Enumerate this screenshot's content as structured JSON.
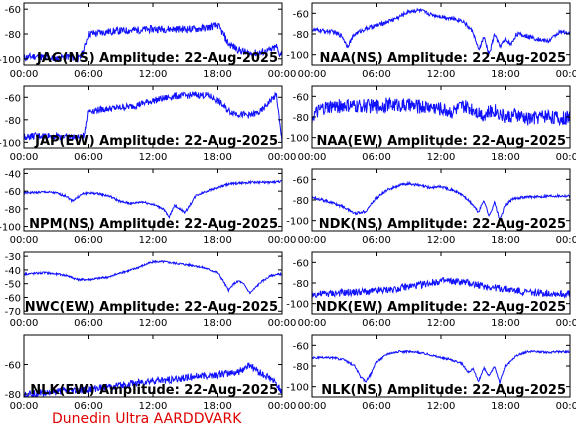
{
  "footer": "Dunedin Ultra AARDDVARK",
  "colors": {
    "trace": "#1010ff",
    "axes": "#000000",
    "footer": "#e00000",
    "background": "#ffffff"
  },
  "x_ticks": [
    "00:00",
    "06:00",
    "12:00",
    "18:00",
    "00:00"
  ],
  "chart_data": [
    {
      "type": "line",
      "title": "JAG(NS) Amplitude: 22-Aug-2025",
      "xlim": [
        0,
        24
      ],
      "ylim": [
        -105,
        -55
      ],
      "y_ticks": [
        -60,
        -80,
        -100
      ],
      "series": [
        {
          "x": [
            0,
            1,
            2,
            3,
            4,
            5.2,
            5.6,
            6,
            8,
            10,
            12,
            14,
            16,
            17,
            18,
            18.5,
            19,
            20,
            21,
            22,
            23,
            23.5,
            23.7,
            24
          ],
          "values": [
            -99,
            -98,
            -99,
            -100,
            -98,
            -100,
            -93,
            -80,
            -78,
            -77,
            -76,
            -76,
            -76,
            -75,
            -73,
            -80,
            -88,
            -93,
            -96,
            -95,
            -93,
            -90,
            -96,
            -95
          ],
          "noise": 6
        }
      ]
    },
    {
      "type": "line",
      "title": "NAA(NS) Amplitude: 22-Aug-2025",
      "xlim": [
        0,
        24
      ],
      "ylim": [
        -110,
        -50
      ],
      "y_ticks": [
        -60,
        -80,
        -100
      ],
      "series": [
        {
          "x": [
            0,
            1,
            2,
            2.8,
            3.3,
            4,
            5,
            6,
            7,
            8,
            9,
            10,
            11,
            12,
            13,
            14,
            15,
            15.5,
            16,
            16.5,
            17,
            17.5,
            18,
            18.5,
            19,
            20,
            21,
            22,
            23,
            24
          ],
          "values": [
            -76,
            -77,
            -78,
            -82,
            -92,
            -80,
            -75,
            -72,
            -68,
            -64,
            -58,
            -57,
            -61,
            -63,
            -65,
            -67,
            -78,
            -96,
            -83,
            -100,
            -80,
            -92,
            -86,
            -90,
            -80,
            -82,
            -85,
            -87,
            -78,
            -80
          ],
          "noise": 4
        }
      ]
    },
    {
      "type": "line",
      "title": "JAP(EW) Amplitude: 22-Aug-2025",
      "xlim": [
        0,
        24
      ],
      "ylim": [
        -105,
        -50
      ],
      "y_ticks": [
        -60,
        -80,
        -100
      ],
      "series": [
        {
          "x": [
            0,
            2,
            4,
            5.2,
            5.6,
            6,
            8,
            10,
            12,
            14,
            16,
            17,
            17.5,
            18,
            19,
            20,
            21,
            22,
            23,
            23.5,
            23.8,
            24
          ],
          "values": [
            -95,
            -94,
            -95,
            -96,
            -94,
            -72,
            -70,
            -68,
            -63,
            -59,
            -58,
            -58,
            -60,
            -63,
            -72,
            -75,
            -76,
            -73,
            -62,
            -58,
            -85,
            -100
          ],
          "noise": 6
        }
      ]
    },
    {
      "type": "line",
      "title": "NAA(EW) Amplitude: 22-Aug-2025",
      "xlim": [
        0,
        24
      ],
      "ylim": [
        -110,
        -50
      ],
      "y_ticks": [
        -60,
        -80,
        -100
      ],
      "series": [
        {
          "x": [
            0,
            1,
            2,
            3,
            4,
            5,
            6,
            7,
            8,
            9,
            10,
            11,
            12,
            13,
            14,
            15,
            16,
            17,
            18,
            19,
            20,
            21,
            22,
            23,
            24
          ],
          "values": [
            -80,
            -72,
            -70,
            -69,
            -70,
            -69,
            -70,
            -68,
            -68,
            -69,
            -70,
            -70,
            -72,
            -75,
            -70,
            -72,
            -78,
            -73,
            -80,
            -78,
            -82,
            -80,
            -78,
            -82,
            -80
          ],
          "noise": 14
        }
      ]
    },
    {
      "type": "line",
      "title": "NPM(NS) Amplitude: 22-Aug-2025",
      "xlim": [
        0,
        24
      ],
      "ylim": [
        -105,
        -35
      ],
      "y_ticks": [
        -40,
        -60,
        -80,
        -100
      ],
      "series": [
        {
          "x": [
            0,
            2,
            3,
            4,
            4.5,
            5,
            5.5,
            6,
            7,
            8,
            9,
            10,
            11,
            12,
            13,
            13.5,
            14,
            14.5,
            15,
            15.5,
            16,
            17,
            18,
            19,
            20,
            21,
            22,
            23,
            24
          ],
          "values": [
            -62,
            -61,
            -62,
            -66,
            -71,
            -67,
            -63,
            -62,
            -63,
            -66,
            -72,
            -74,
            -72,
            -75,
            -80,
            -90,
            -76,
            -80,
            -84,
            -75,
            -65,
            -60,
            -56,
            -52,
            -51,
            -50,
            -50,
            -50,
            -49
          ],
          "noise": 2.5
        }
      ]
    },
    {
      "type": "line",
      "title": "NDK(NS) Amplitude: 22-Aug-2025",
      "xlim": [
        0,
        24
      ],
      "ylim": [
        -110,
        -50
      ],
      "y_ticks": [
        -60,
        -80,
        -100
      ],
      "series": [
        {
          "x": [
            0,
            1,
            2,
            3,
            4,
            5,
            6,
            7,
            8,
            9,
            10,
            11,
            12,
            13,
            14,
            15,
            15.5,
            16,
            16.5,
            17,
            17.5,
            18,
            18.5,
            19,
            20,
            21,
            22,
            23,
            24
          ],
          "values": [
            -77,
            -80,
            -83,
            -87,
            -93,
            -91,
            -78,
            -70,
            -66,
            -64,
            -66,
            -68,
            -67,
            -70,
            -75,
            -85,
            -92,
            -80,
            -96,
            -82,
            -100,
            -85,
            -80,
            -78,
            -77,
            -77,
            -76,
            -76,
            -76
          ],
          "noise": 2.5
        }
      ]
    },
    {
      "type": "line",
      "title": "NWC(EW) Amplitude: 22-Aug-2025",
      "xlim": [
        0,
        24
      ],
      "ylim": [
        -72,
        -27
      ],
      "y_ticks": [
        -30,
        -40,
        -50,
        -60,
        -70
      ],
      "series": [
        {
          "x": [
            0,
            2,
            4,
            5,
            6,
            7,
            8,
            9,
            10,
            11,
            12,
            13,
            14,
            15,
            16,
            17,
            18,
            18.5,
            19,
            19.5,
            20,
            20.5,
            21,
            22,
            23,
            24
          ],
          "values": [
            -43,
            -42,
            -44,
            -47,
            -47,
            -46,
            -45,
            -42,
            -40,
            -37,
            -34,
            -34,
            -35,
            -36,
            -37,
            -39,
            -42,
            -48,
            -55,
            -50,
            -48,
            -51,
            -57,
            -49,
            -44,
            -43
          ],
          "noise": 1.5
        }
      ]
    },
    {
      "type": "line",
      "title": "NDK(EW) Amplitude: 22-Aug-2025",
      "xlim": [
        0,
        24
      ],
      "ylim": [
        -110,
        -50
      ],
      "y_ticks": [
        -60,
        -80,
        -100
      ],
      "series": [
        {
          "x": [
            0,
            2,
            4,
            6,
            8,
            10,
            12,
            14,
            16,
            18,
            20,
            22,
            24
          ],
          "values": [
            -91,
            -90,
            -89,
            -88,
            -85,
            -82,
            -78,
            -79,
            -83,
            -86,
            -89,
            -90,
            -91
          ],
          "noise": 7
        }
      ]
    },
    {
      "type": "line",
      "title": "NLK(EW) Amplitude: 22-Aug-2025",
      "xlim": [
        0,
        24
      ],
      "ylim": [
        -82,
        -40
      ],
      "y_ticks": [
        -60,
        -80
      ],
      "series": [
        {
          "x": [
            0,
            2,
            4,
            6,
            8,
            10,
            12,
            14,
            16,
            18,
            20,
            21,
            22,
            23,
            24
          ],
          "values": [
            -80,
            -79,
            -78,
            -77,
            -75,
            -73,
            -71,
            -70,
            -68,
            -67,
            -65,
            -60,
            -66,
            -70,
            -78
          ],
          "noise": 5
        }
      ]
    },
    {
      "type": "line",
      "title": "NLK(NS) Amplitude: 22-Aug-2025",
      "xlim": [
        0,
        24
      ],
      "ylim": [
        -110,
        -50
      ],
      "y_ticks": [
        -60,
        -80,
        -100
      ],
      "series": [
        {
          "x": [
            0,
            2,
            3,
            4,
            4.5,
            5,
            5.5,
            6,
            7,
            8,
            9,
            10,
            11,
            12,
            13,
            14,
            14.5,
            15,
            15.5,
            16,
            16.5,
            17,
            17.5,
            18,
            19,
            20,
            21,
            22,
            23,
            24
          ],
          "values": [
            -72,
            -72,
            -74,
            -80,
            -90,
            -95,
            -88,
            -76,
            -68,
            -66,
            -66,
            -67,
            -69,
            -72,
            -74,
            -78,
            -86,
            -83,
            -95,
            -82,
            -90,
            -80,
            -96,
            -80,
            -70,
            -66,
            -66,
            -67,
            -66,
            -66
          ],
          "noise": 2
        }
      ]
    }
  ]
}
